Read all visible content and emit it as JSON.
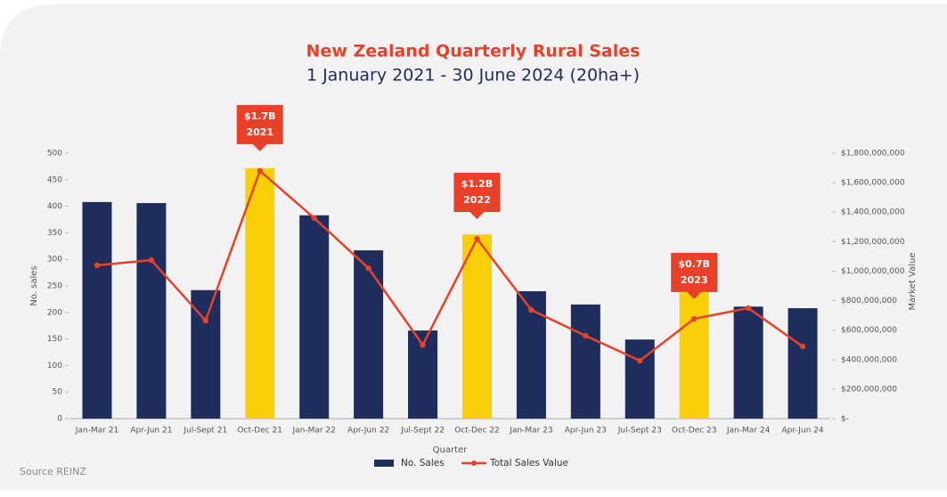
{
  "chart_data": {
    "type": "bar-line",
    "title": "New Zealand Quarterly Rural Sales",
    "subtitle": "1 January 2021 - 30 June 2024 (20ha+)",
    "x_label": "Quarter",
    "y_label": "No. sales",
    "y2_label": "Market Value",
    "source": "Source REINZ",
    "categories": [
      "Jan-Mar 21",
      "Apr-Jun 21",
      "Jul-Sept 21",
      "Oct-Dec 21",
      "Jan-Mar 22",
      "Apr-Jun 22",
      "Jul-Sept 22",
      "Oct-Dec 22",
      "Jan-Mar 23",
      "Apr-Jun 23",
      "Jul-Sept 23",
      "Oct-Dec 23",
      "Jan-Mar 24",
      "Apr-Jun 24"
    ],
    "series": [
      {
        "name": "No. Sales",
        "type": "bar",
        "color": "#1f2d5c",
        "colors": [
          "#1f2d5c",
          "#1f2d5c",
          "#1f2d5c",
          "#f9cf0a",
          "#1f2d5c",
          "#1f2d5c",
          "#1f2d5c",
          "#f9cf0a",
          "#1f2d5c",
          "#1f2d5c",
          "#1f2d5c",
          "#f9cf0a",
          "#1f2d5c",
          "#1f2d5c"
        ],
        "values": [
          408,
          406,
          242,
          472,
          383,
          317,
          166,
          347,
          240,
          215,
          149,
          238,
          211,
          208
        ]
      },
      {
        "name": "Total Sales Value",
        "type": "line",
        "axis": "y2",
        "color": "#e8412a",
        "values": [
          1040000000,
          1075000000,
          665000000,
          1680000000,
          1360000000,
          1020000000,
          500000000,
          1220000000,
          737000000,
          562000000,
          393000000,
          677000000,
          749000000,
          489000000
        ]
      }
    ],
    "ylim": [
      0,
      500
    ],
    "yticks": [
      0,
      50,
      100,
      150,
      200,
      250,
      300,
      350,
      400,
      450,
      500
    ],
    "y2lim": [
      0,
      1800000000
    ],
    "y2ticks": [
      {
        "value": 0,
        "label": "$-"
      },
      {
        "value": 200000000,
        "label": "$200,000,000"
      },
      {
        "value": 400000000,
        "label": "$400,000,000"
      },
      {
        "value": 600000000,
        "label": "$600,000,000"
      },
      {
        "value": 800000000,
        "label": "$800,000,000"
      },
      {
        "value": 1000000000,
        "label": "$1,000,000,000"
      },
      {
        "value": 1200000000,
        "label": "$1,200,000,000"
      },
      {
        "value": 1400000000,
        "label": "$1,400,000,000"
      },
      {
        "value": 1600000000,
        "label": "$1,600,000,000"
      },
      {
        "value": 1800000000,
        "label": "$1,800,000,000"
      }
    ],
    "annotations": [
      {
        "category": "Oct-Dec 21",
        "text": "$1.7B",
        "year": "2021"
      },
      {
        "category": "Oct-Dec 22",
        "text": "$1.2B",
        "year": "2022"
      },
      {
        "category": "Oct-Dec 23",
        "text": "$0.7B",
        "year": "2023"
      }
    ]
  }
}
